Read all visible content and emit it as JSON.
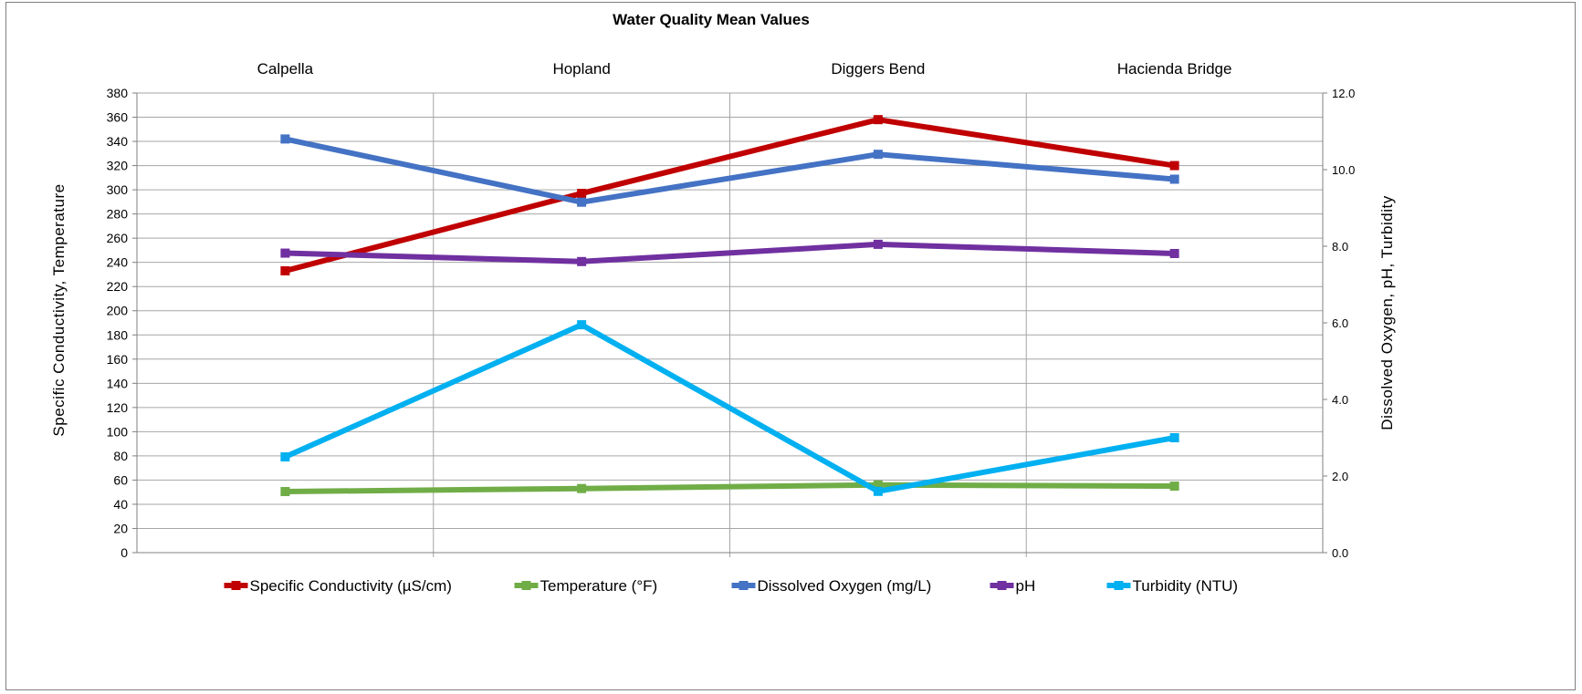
{
  "chart_data": {
    "type": "line",
    "title": "Water Quality Mean Values",
    "categories": [
      "Calpella",
      "Hopland",
      "Diggers Bend",
      "Hacienda Bridge"
    ],
    "y_left": {
      "label": "Specific Conductivity,  Temperature",
      "range": [
        0,
        380
      ],
      "step": 20,
      "ticks": [
        "0",
        "20",
        "40",
        "60",
        "80",
        "100",
        "120",
        "140",
        "160",
        "180",
        "200",
        "220",
        "240",
        "260",
        "280",
        "300",
        "320",
        "340",
        "360",
        "380"
      ]
    },
    "y_right": {
      "label": "Dissolved Oxygen, pH, Turbidity",
      "range": [
        0,
        12
      ],
      "step": 2,
      "ticks": [
        "0.0",
        "2.0",
        "4.0",
        "6.0",
        "8.0",
        "10.0",
        "12.0"
      ]
    },
    "grid": true,
    "legend_position": "bottom",
    "series": [
      {
        "name": "Specific Conductivity (µS/cm)",
        "axis": "left",
        "color": "#c00000",
        "values": [
          233,
          297,
          358,
          320
        ]
      },
      {
        "name": "Temperature  (°F)",
        "axis": "left",
        "color": "#70ad47",
        "values": [
          50.5,
          53,
          56,
          55
        ]
      },
      {
        "name": "Dissolved Oxygen (mg/L)",
        "axis": "right",
        "color": "#4472c4",
        "values": [
          10.8,
          9.15,
          10.4,
          9.75
        ]
      },
      {
        "name": "pH",
        "axis": "right",
        "color": "#7030a0",
        "values": [
          7.82,
          7.6,
          8.05,
          7.81
        ]
      },
      {
        "name": "Turbidity (NTU)",
        "axis": "right",
        "color": "#00b0f0",
        "values": [
          2.5,
          5.95,
          1.6,
          3.0
        ]
      }
    ]
  }
}
